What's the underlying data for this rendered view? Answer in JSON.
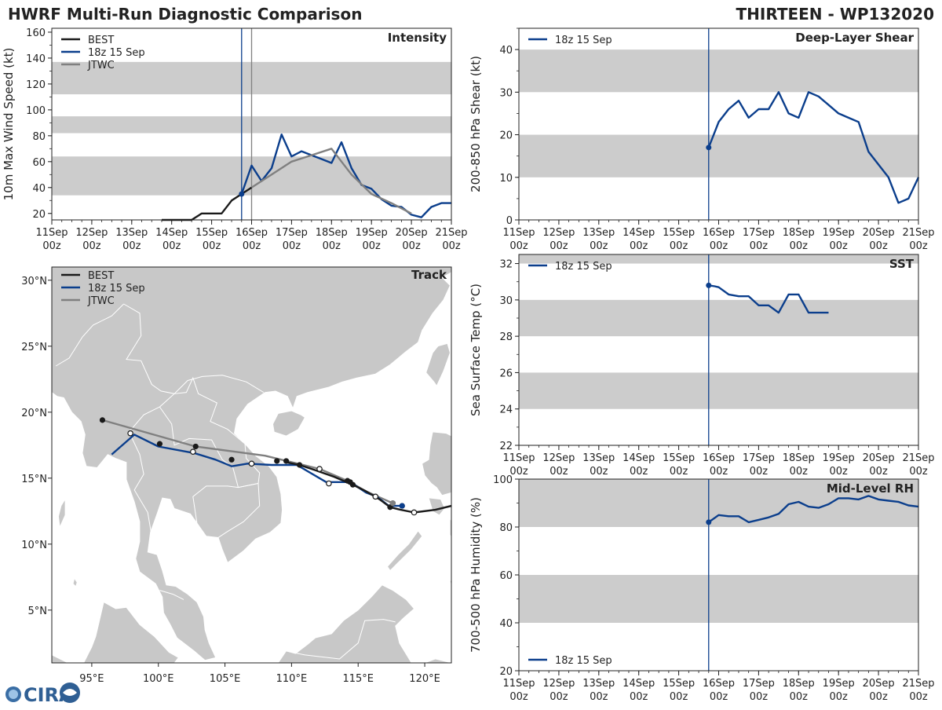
{
  "header": {
    "title": "HWRF Multi-Run Diagnostic Comparison",
    "storm": "THIRTEEN - WP132020"
  },
  "logo": {
    "text": "CIRA"
  },
  "colors": {
    "best": "#1a1a1a",
    "hwrf": "#0b3e8c",
    "jtwc": "#808080",
    "band": "#cccccc",
    "land": "#c8c8c8",
    "sea": "#ffffff"
  },
  "chart_data": [
    {
      "id": "intensity",
      "type": "line",
      "title": "Intensity",
      "ylabel": "10m Max Wind Speed (kt)",
      "xlim": [
        0,
        10
      ],
      "ylim": [
        15,
        163
      ],
      "yticks": [
        20,
        40,
        60,
        80,
        100,
        120,
        140,
        160
      ],
      "xticks_top": [
        "11Sep",
        "12Sep",
        "13Sep",
        "14Sep",
        "15Sep",
        "16Sep",
        "17Sep",
        "18Sep",
        "19Sep",
        "20Sep",
        "21Sep"
      ],
      "xticks_bottom": [
        "00z",
        "00z",
        "00z",
        "00z",
        "00z",
        "00z",
        "00z",
        "00z",
        "00z",
        "00z",
        "00z"
      ],
      "bands": [
        [
          34,
          64
        ],
        [
          82,
          95
        ],
        [
          112,
          137
        ]
      ],
      "vlines": [
        {
          "x": 4.75,
          "color": "hwrf"
        },
        {
          "x": 5.0,
          "color": "jtwc"
        }
      ],
      "legend": [
        "BEST",
        "18z 15 Sep",
        "JTWC"
      ],
      "series": [
        {
          "name": "BEST",
          "color": "best",
          "x": [
            2.75,
            3.0,
            3.25,
            3.5,
            3.75,
            4.0,
            4.25,
            4.5,
            4.75,
            5.0
          ],
          "y": [
            15,
            15,
            15,
            15,
            20,
            20,
            20,
            30,
            35,
            40
          ]
        },
        {
          "name": "18z 15 Sep",
          "color": "hwrf",
          "start_marker": true,
          "x": [
            4.75,
            5.0,
            5.25,
            5.5,
            5.75,
            6.0,
            6.25,
            6.5,
            6.75,
            7.0,
            7.25,
            7.5,
            7.75,
            8.0,
            8.25,
            8.5,
            8.75,
            9.0,
            9.25,
            9.5,
            9.75,
            10.0
          ],
          "y": [
            35,
            57,
            45,
            55,
            81,
            64,
            68,
            65,
            62,
            59,
            75,
            55,
            42,
            39,
            31,
            26,
            25,
            19,
            17,
            25,
            28,
            28
          ]
        },
        {
          "name": "JTWC",
          "color": "jtwc",
          "x": [
            5.0,
            5.5,
            6.0,
            6.5,
            7.0,
            7.5,
            8.0,
            8.5,
            9.0
          ],
          "y": [
            40,
            50,
            60,
            65,
            70,
            50,
            35,
            28,
            20
          ]
        }
      ]
    },
    {
      "id": "shear",
      "type": "line",
      "title": "Deep-Layer Shear",
      "ylabel": "200-850 hPa Shear (kt)",
      "xlim": [
        0,
        10
      ],
      "ylim": [
        0,
        45
      ],
      "yticks": [
        0,
        10,
        20,
        30,
        40
      ],
      "xticks_top": [
        "11Sep",
        "12Sep",
        "13Sep",
        "14Sep",
        "15Sep",
        "16Sep",
        "17Sep",
        "18Sep",
        "19Sep",
        "20Sep",
        "21Sep"
      ],
      "xticks_bottom": [
        "00z",
        "00z",
        "00z",
        "00z",
        "00z",
        "00z",
        "00z",
        "00z",
        "00z",
        "00z",
        "00z"
      ],
      "bands": [
        [
          10,
          20
        ],
        [
          30,
          40
        ]
      ],
      "vlines": [
        {
          "x": 4.75,
          "color": "hwrf"
        }
      ],
      "legend": [
        "18z 15 Sep"
      ],
      "series": [
        {
          "name": "18z 15 Sep",
          "color": "hwrf",
          "start_marker": true,
          "x": [
            4.75,
            5.0,
            5.25,
            5.5,
            5.75,
            6.0,
            6.25,
            6.5,
            6.75,
            7.0,
            7.25,
            7.5,
            7.75,
            8.0,
            8.25,
            8.5,
            8.75,
            9.0,
            9.25,
            9.5,
            9.75,
            10.0
          ],
          "y": [
            17,
            23,
            26,
            28,
            24,
            26,
            26,
            30,
            25,
            24,
            30,
            29,
            27,
            25,
            24,
            23,
            16,
            13,
            10,
            4,
            5,
            10
          ]
        }
      ]
    },
    {
      "id": "sst",
      "type": "line",
      "title": "SST",
      "ylabel": "Sea Surface Temp (°C)",
      "xlim": [
        0,
        10
      ],
      "ylim": [
        22,
        32.5
      ],
      "yticks": [
        22,
        24,
        26,
        28,
        30,
        32
      ],
      "xticks_top": [
        "11Sep",
        "12Sep",
        "13Sep",
        "14Sep",
        "15Sep",
        "16Sep",
        "17Sep",
        "18Sep",
        "19Sep",
        "20Sep",
        "21Sep"
      ],
      "xticks_bottom": [
        "00z",
        "00z",
        "00z",
        "00z",
        "00z",
        "00z",
        "00z",
        "00z",
        "00z",
        "00z",
        "00z"
      ],
      "bands": [
        [
          24,
          26
        ],
        [
          28,
          30
        ],
        [
          32,
          32.5
        ]
      ],
      "vlines": [
        {
          "x": 4.75,
          "color": "hwrf"
        }
      ],
      "legend": [
        "18z 15 Sep"
      ],
      "series": [
        {
          "name": "18z 15 Sep",
          "color": "hwrf",
          "start_marker": true,
          "x": [
            4.75,
            4.9,
            5.0,
            5.25,
            5.5,
            5.75,
            6.0,
            6.25,
            6.5,
            6.75,
            7.0,
            7.25,
            7.5,
            7.75
          ],
          "y": [
            30.8,
            30.75,
            30.7,
            30.3,
            30.2,
            30.2,
            29.7,
            29.7,
            29.3,
            30.3,
            30.3,
            29.3,
            29.3,
            29.3
          ]
        }
      ]
    },
    {
      "id": "rh",
      "type": "line",
      "title": "Mid-Level RH",
      "ylabel": "700-500 hPa Humidity (%)",
      "xlim": [
        0,
        10
      ],
      "ylim": [
        20,
        100
      ],
      "yticks": [
        20,
        40,
        60,
        80,
        100
      ],
      "xticks_top": [
        "11Sep",
        "12Sep",
        "13Sep",
        "14Sep",
        "15Sep",
        "16Sep",
        "17Sep",
        "18Sep",
        "19Sep",
        "20Sep",
        "21Sep"
      ],
      "xticks_bottom": [
        "00z",
        "00z",
        "00z",
        "00z",
        "00z",
        "00z",
        "00z",
        "00z",
        "00z",
        "00z",
        "00z"
      ],
      "bands": [
        [
          40,
          60
        ],
        [
          80,
          100
        ]
      ],
      "vlines": [
        {
          "x": 4.75,
          "color": "hwrf"
        }
      ],
      "legend": [
        "18z 15 Sep"
      ],
      "legend_bottom": true,
      "series": [
        {
          "name": "18z 15 Sep",
          "color": "hwrf",
          "start_marker": true,
          "x": [
            4.75,
            5.0,
            5.25,
            5.5,
            5.75,
            6.0,
            6.25,
            6.5,
            6.75,
            7.0,
            7.25,
            7.5,
            7.75,
            8.0,
            8.25,
            8.5,
            8.75,
            9.0,
            9.25,
            9.5,
            9.75,
            10.0
          ],
          "y": [
            82,
            85,
            84.5,
            84.5,
            82,
            83,
            84,
            85.5,
            89.5,
            90.5,
            88.5,
            88,
            89.5,
            92,
            92,
            91.5,
            93,
            91.5,
            91,
            90.5,
            89,
            88.5
          ]
        }
      ]
    },
    {
      "id": "track",
      "type": "scatter",
      "title": "Track",
      "xlim": [
        92,
        122
      ],
      "ylim": [
        1,
        31
      ],
      "xticks": [
        95,
        100,
        105,
        110,
        115,
        120
      ],
      "xtick_labels": [
        "95°E",
        "100°E",
        "105°E",
        "110°E",
        "115°E",
        "120°E"
      ],
      "yticks": [
        5,
        10,
        15,
        20,
        25,
        30
      ],
      "ytick_labels": [
        "5°N",
        "10°N",
        "15°N",
        "20°N",
        "25°N",
        "30°N"
      ],
      "legend": [
        "BEST",
        "18z 15 Sep",
        "JTWC"
      ],
      "series": [
        {
          "name": "BEST",
          "color": "best",
          "lon": [
            122.0,
            120.8,
            119.2,
            118.2,
            117.4,
            116.6,
            115.6,
            114.6,
            113.2,
            111.8,
            110.6,
            109.6
          ],
          "lat": [
            12.9,
            12.6,
            12.4,
            12.6,
            12.8,
            13.4,
            14.0,
            14.5,
            15.1,
            15.6,
            16.0,
            16.2
          ],
          "marker_lon": [
            117.4,
            114.6,
            110.6
          ],
          "marker_lat": [
            12.8,
            14.5,
            16.0
          ]
        },
        {
          "name": "18z 15 Sep",
          "color": "hwrf",
          "lon": [
            118.3,
            117.3,
            116.4,
            115.6,
            114.4,
            112.6,
            110.4,
            108.5,
            106.7,
            105.5,
            104.3,
            102.7,
            100.0,
            98.2,
            96.5
          ],
          "lat": [
            12.9,
            12.9,
            13.6,
            13.9,
            14.7,
            14.7,
            16.0,
            16.0,
            16.1,
            15.9,
            16.4,
            16.9,
            17.4,
            18.3,
            16.8
          ],
          "marker_lon": [
            118.3,
            114.4,
            109.6,
            105.5,
            100.1
          ],
          "marker_lat": [
            12.9,
            14.7,
            16.3,
            16.4,
            17.6
          ],
          "open_lon": [
            119.2,
            116.3,
            112.8,
            107.0,
            102.6,
            97.9
          ],
          "open_lat": [
            12.4,
            13.6,
            14.6,
            16.1,
            17.0,
            18.4
          ]
        },
        {
          "name": "JTWC",
          "color": "jtwc",
          "lon": [
            117.6,
            115.6,
            114.2,
            112.1,
            108.0,
            102.8,
            95.8
          ],
          "lat": [
            13.1,
            14.0,
            14.8,
            15.7,
            16.7,
            17.4,
            19.4
          ],
          "marker_lon": [
            117.6,
            114.2,
            108.9,
            102.8,
            95.8
          ],
          "marker_lat": [
            13.1,
            14.8,
            16.3,
            17.4,
            19.4
          ],
          "open_lon": [
            112.1
          ],
          "open_lat": [
            15.7
          ]
        }
      ]
    }
  ]
}
